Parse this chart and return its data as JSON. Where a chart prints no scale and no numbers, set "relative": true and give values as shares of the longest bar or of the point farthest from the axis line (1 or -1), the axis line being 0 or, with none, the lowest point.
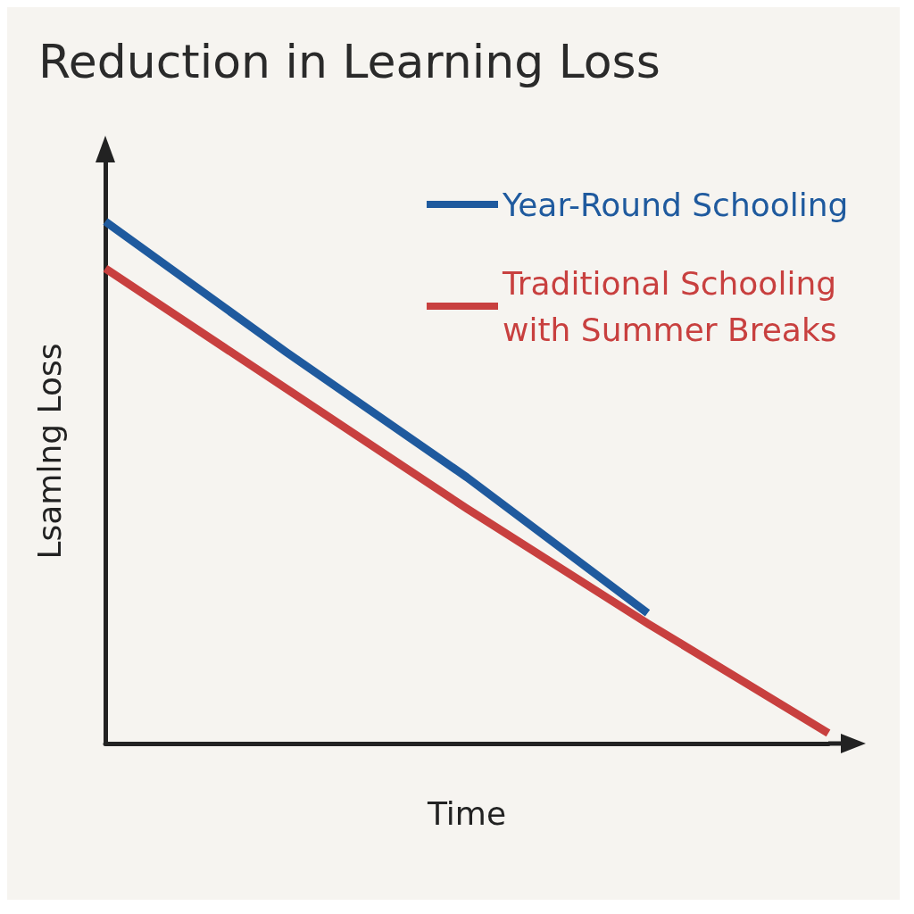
{
  "chart_data": {
    "type": "line",
    "title": "Reduction in Learning Loss",
    "xlabel": "Time",
    "ylabel": "Lsamlng Loss",
    "relative": true,
    "categories": [
      null,
      null,
      null,
      null,
      null
    ],
    "series": [
      {
        "name": "Year-Round Schooling",
        "color": "#1f5a9e",
        "values": [
          1,
          0.75,
          0.51,
          0.25,
          null
        ]
      },
      {
        "name": "Traditional Schooling with Summer Breaks",
        "color": "#c8403f",
        "values": [
          0.91,
          0.68,
          0.45,
          0.23,
          0.02
        ]
      }
    ],
    "legend": "top right",
    "grid": false,
    "marker": "none",
    "line_style": "solid"
  }
}
